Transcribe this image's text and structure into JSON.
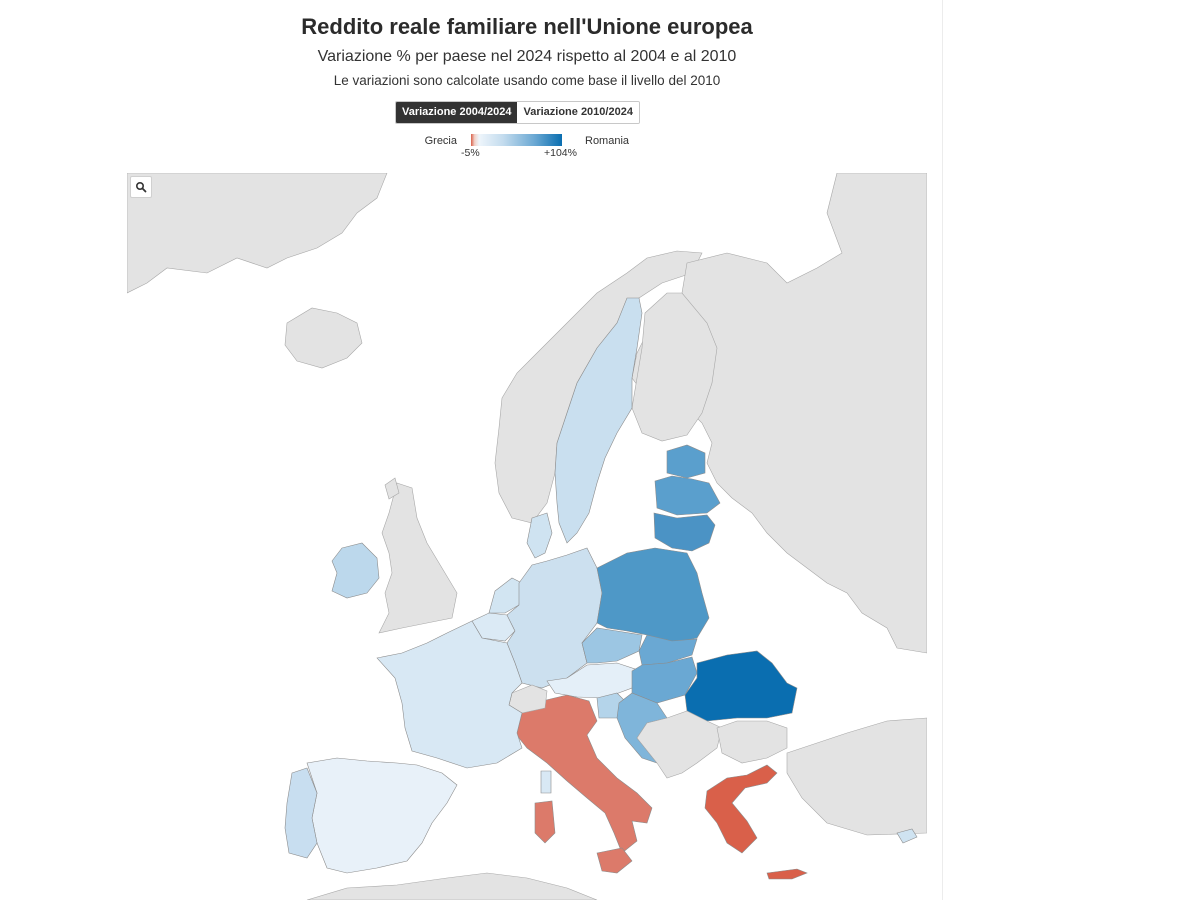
{
  "title": "Reddito reale familiare nell'Unione europea",
  "subtitle": "Variazione % per paese nel 2024 rispetto al 2004 e al 2010",
  "note": "Le variazioni sono calcolate usando come base il livello del 2010",
  "tabs": [
    {
      "label": "Variazione 2004/2024",
      "active": true
    },
    {
      "label": "Variazione 2010/2024",
      "active": false
    }
  ],
  "legend": {
    "min_name": "Grecia",
    "max_name": "Romania",
    "min_value": "-5%",
    "max_value": "+104%",
    "color_low": "#d9604a",
    "color_zero": "#eef5fb",
    "color_high": "#0a6eb0"
  },
  "map": {
    "zoom_icon": "search-icon",
    "non_eu_color": "#e3e3e3",
    "water_color": "#ffffff",
    "country_colors": {
      "Greece": "#d9604a",
      "Italy": "#dc7a6a",
      "Romania": "#0a6eb0",
      "Poland": "#4e98c7",
      "Lithuania": "#4b93c5",
      "Latvia": "#5a9fcd",
      "Estonia": "#5a9fcd",
      "Hungary": "#6aa8d3",
      "Slovakia": "#6aa8d3",
      "Croatia": "#7fb5da",
      "Czechia": "#9cc6e3",
      "Slovenia": "#b4d4ea",
      "Sweden": "#c9dfef",
      "Germany": "#cce0ef",
      "Ireland": "#bcd8ec",
      "Portugal": "#c8def0",
      "Netherlands": "#d2e5f2",
      "Belgium": "#dbeaf5",
      "Denmark": "#cfe3f1",
      "France": "#d8e8f4",
      "Austria": "#e4eff8",
      "Spain": "#e8f1f9",
      "Cyprus": "#cfe3f1"
    }
  }
}
